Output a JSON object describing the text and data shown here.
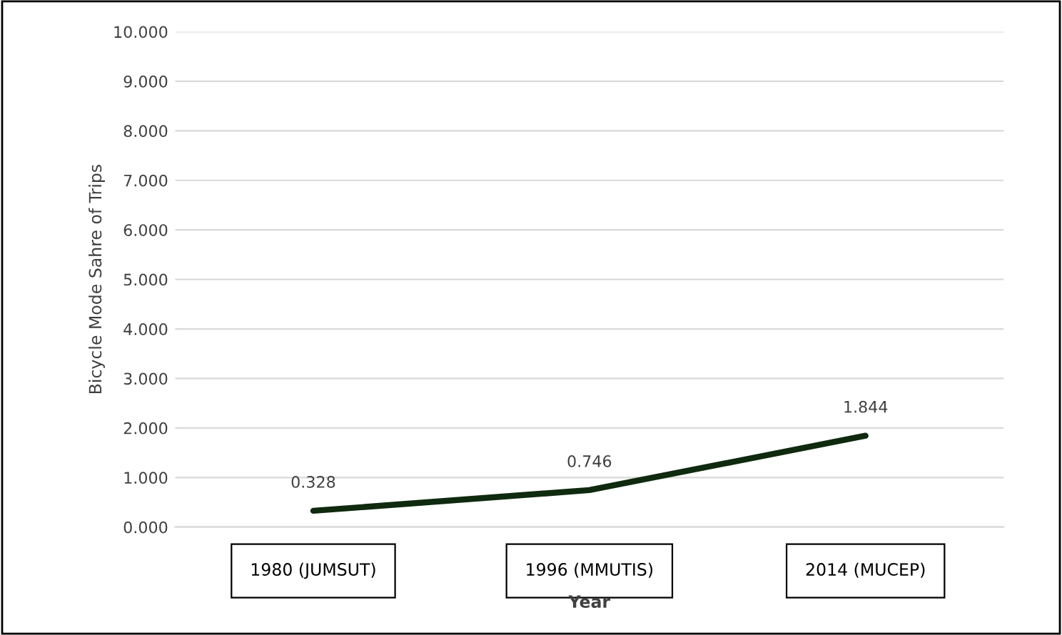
{
  "chart_data": {
    "type": "line",
    "xlabel": "Year",
    "ylabel": "Bicycle Mode Sahre of Trips",
    "categories": [
      "1980 (JUMSUT)",
      "1996 (MMUTIS)",
      "2014 (MUCEP)"
    ],
    "series": [
      {
        "color": "#0f2a0f",
        "values": [
          0.328,
          0.746,
          1.844
        ]
      }
    ],
    "ylim": [
      0,
      10
    ],
    "yticks": [
      {
        "value": 0,
        "label": "0.000"
      },
      {
        "value": 1,
        "label": "1.000"
      },
      {
        "value": 2,
        "label": "2.000"
      },
      {
        "value": 3,
        "label": "3.000"
      },
      {
        "value": 4,
        "label": "4.000"
      },
      {
        "value": 5,
        "label": "5.000"
      },
      {
        "value": 6,
        "label": "6.000"
      },
      {
        "value": 7,
        "label": "7.000"
      },
      {
        "value": 8,
        "label": "8.000"
      },
      {
        "value": 9,
        "label": "9.000"
      },
      {
        "value": 10,
        "label": "10.000"
      }
    ],
    "grid": "y",
    "data_labels": true,
    "marker": "none",
    "line_style": "solid"
  }
}
